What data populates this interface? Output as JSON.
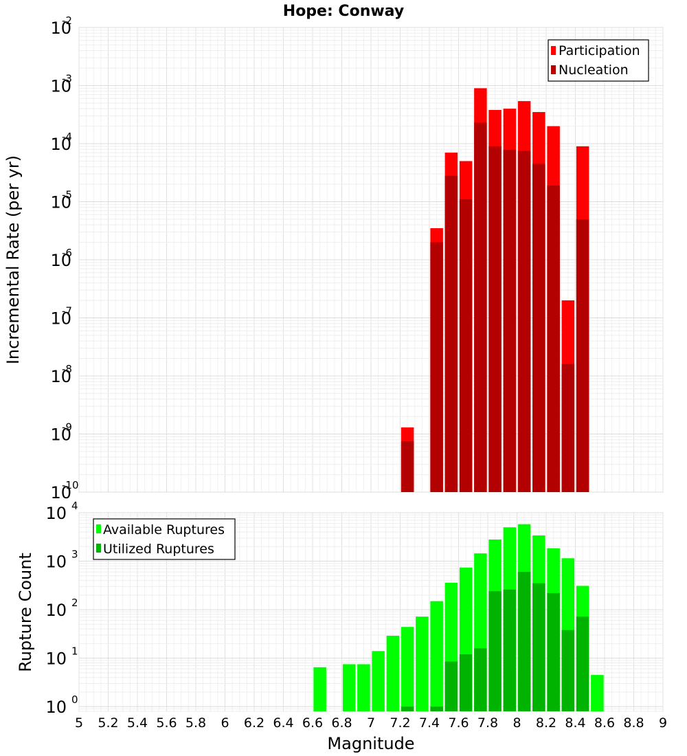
{
  "figure": {
    "title": "Hope: Conway",
    "xlabel": "Magnitude"
  },
  "x_ticks": [
    "5",
    "5.2",
    "5.4",
    "5.6",
    "5.8",
    "6",
    "6.2",
    "6.4",
    "6.6",
    "6.8",
    "7",
    "7.2",
    "7.4",
    "7.6",
    "7.8",
    "8",
    "8.2",
    "8.4",
    "8.6",
    "8.8",
    "9"
  ],
  "chart_data": [
    {
      "type": "bar",
      "ylabel": "Incremental Rate (per yr)",
      "yscale": "log",
      "ylim": [
        1e-10,
        0.01
      ],
      "xlim": [
        5,
        9
      ],
      "y_ticks": [
        {
          "base": "10",
          "exp": "-10"
        },
        {
          "base": "10",
          "exp": "-9"
        },
        {
          "base": "10",
          "exp": "-8"
        },
        {
          "base": "10",
          "exp": "-7"
        },
        {
          "base": "10",
          "exp": "-6"
        },
        {
          "base": "10",
          "exp": "-5"
        },
        {
          "base": "10",
          "exp": "-4"
        },
        {
          "base": "10",
          "exp": "-3"
        },
        {
          "base": "10",
          "exp": "-2"
        }
      ],
      "legend_position": "top-right",
      "x": [
        7.25,
        7.45,
        7.55,
        7.65,
        7.75,
        7.85,
        7.95,
        8.05,
        8.15,
        8.25,
        8.35,
        8.45
      ],
      "series": [
        {
          "name": "Participation",
          "color": "#ff0000",
          "values": [
            1.3e-09,
            3.5e-06,
            7e-05,
            5e-05,
            0.0009,
            0.00038,
            0.0004,
            0.00054,
            0.00035,
            0.0002,
            2e-07,
            9e-05
          ]
        },
        {
          "name": "Nucleation",
          "color": "#b30000",
          "values": [
            7.5e-10,
            2e-06,
            2.8e-05,
            1.1e-05,
            0.00023,
            9e-05,
            7.8e-05,
            7.5e-05,
            4.5e-05,
            1.9e-05,
            1.6e-08,
            5e-06
          ]
        }
      ]
    },
    {
      "type": "bar",
      "ylabel": "Rupture Count",
      "yscale": "log",
      "ylim": [
        0.8,
        10000
      ],
      "xlim": [
        5,
        9
      ],
      "y_ticks": [
        {
          "base": "10",
          "exp": "0",
          "value": 1
        },
        {
          "base": "10",
          "exp": "1",
          "value": 10
        },
        {
          "base": "10",
          "exp": "2",
          "value": 100
        },
        {
          "base": "10",
          "exp": "3",
          "value": 1000
        },
        {
          "base": "10",
          "exp": "4",
          "value": 10000
        }
      ],
      "legend_position": "top-left",
      "x": [
        6.65,
        6.85,
        6.95,
        7.05,
        7.15,
        7.25,
        7.35,
        7.45,
        7.55,
        7.65,
        7.75,
        7.85,
        7.95,
        8.05,
        8.15,
        8.25,
        8.35,
        8.45,
        8.55
      ],
      "series": [
        {
          "name": "Available Ruptures",
          "color": "#00ff00",
          "values": [
            6.5,
            7.5,
            7.5,
            14,
            29,
            44,
            72,
            150,
            360,
            740,
            1450,
            2800,
            5000,
            5800,
            3400,
            1850,
            1150,
            310,
            4.5
          ]
        },
        {
          "name": "Utilized Ruptures",
          "color": "#00b300",
          "values": [
            0,
            0,
            0,
            0,
            0,
            1,
            0,
            1,
            8.5,
            12,
            16,
            240,
            260,
            600,
            350,
            220,
            38,
            72,
            0
          ]
        }
      ]
    }
  ]
}
